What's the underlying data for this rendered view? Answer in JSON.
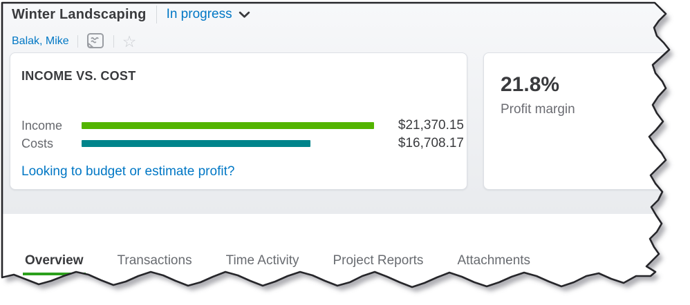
{
  "header": {
    "project_title": "Winter Landscaping",
    "status": "In progress",
    "customer": "Balak, Mike",
    "icons": {
      "status_chevron": "chevron-down-icon",
      "notes": "notes-icon",
      "favorite": "star-icon",
      "star_glyph": "☆"
    }
  },
  "income_cost_card": {
    "title": "INCOME VS. COST",
    "link_text": "Looking to budget or estimate profit?"
  },
  "chart_data": {
    "type": "bar",
    "orientation": "horizontal",
    "title": "INCOME VS. COST",
    "categories": [
      "Income",
      "Costs"
    ],
    "values": [
      21370.15,
      16708.17
    ],
    "value_labels": [
      "$21,370.15",
      "$16,708.17"
    ],
    "colors": [
      "#53b400",
      "#00848b"
    ]
  },
  "profit_card": {
    "value": "21.8%",
    "label": "Profit margin"
  },
  "tabs": [
    {
      "label": "Overview",
      "active": true
    },
    {
      "label": "Transactions",
      "active": false
    },
    {
      "label": "Time Activity",
      "active": false
    },
    {
      "label": "Project Reports",
      "active": false
    },
    {
      "label": "Attachments",
      "active": false
    }
  ],
  "colors": {
    "link_blue": "#0077c5",
    "income_green": "#53b400",
    "cost_teal": "#00848b",
    "active_tab_underline_green": "#2ca01c",
    "title_text": "#393a3d"
  }
}
